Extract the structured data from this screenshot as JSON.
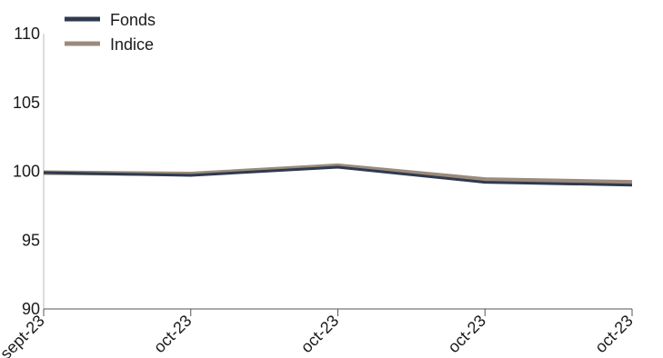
{
  "chart_data": {
    "type": "line",
    "x": [
      "sept-23",
      "oct-23",
      "oct-23",
      "oct-23",
      "oct-23"
    ],
    "series": [
      {
        "name": "Fonds",
        "values": [
          99.9,
          99.7,
          100.3,
          99.2,
          99.0
        ],
        "color": "#2e3a4f"
      },
      {
        "name": "Indice",
        "values": [
          99.9,
          99.8,
          100.4,
          99.4,
          99.2
        ],
        "color": "#9b8b7c"
      }
    ],
    "ylim": [
      90,
      110
    ],
    "yticks": [
      "90",
      "95",
      "100",
      "105",
      "110"
    ],
    "grid": false,
    "legend_position": "top-left"
  }
}
